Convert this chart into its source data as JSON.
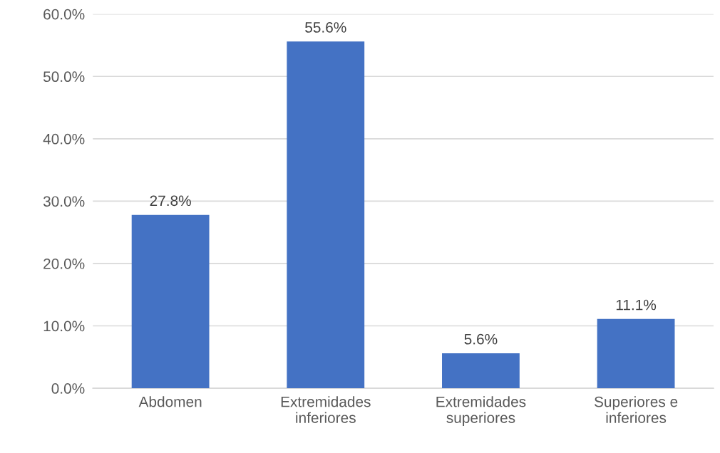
{
  "chart_data": {
    "type": "bar",
    "categories": [
      "Abdomen",
      "Extremidades\ninferiores",
      "Extremidades\nsuperiores",
      "Superiores e\ninferiores"
    ],
    "values": [
      27.8,
      55.6,
      5.6,
      11.1
    ],
    "value_labels": [
      "27.8%",
      "55.6%",
      "5.6%",
      "11.1%"
    ],
    "color": "#4472c4",
    "ylim": [
      0,
      60
    ],
    "yticks": [
      {
        "value": 0,
        "label": "0.0%"
      },
      {
        "value": 10,
        "label": "10.0%"
      },
      {
        "value": 20,
        "label": "20.0%"
      },
      {
        "value": 30,
        "label": "30.0%"
      },
      {
        "value": 40,
        "label": "40.0%"
      },
      {
        "value": 50,
        "label": "50.0%"
      },
      {
        "value": 60,
        "label": "60.0%"
      }
    ],
    "grid": "y"
  }
}
